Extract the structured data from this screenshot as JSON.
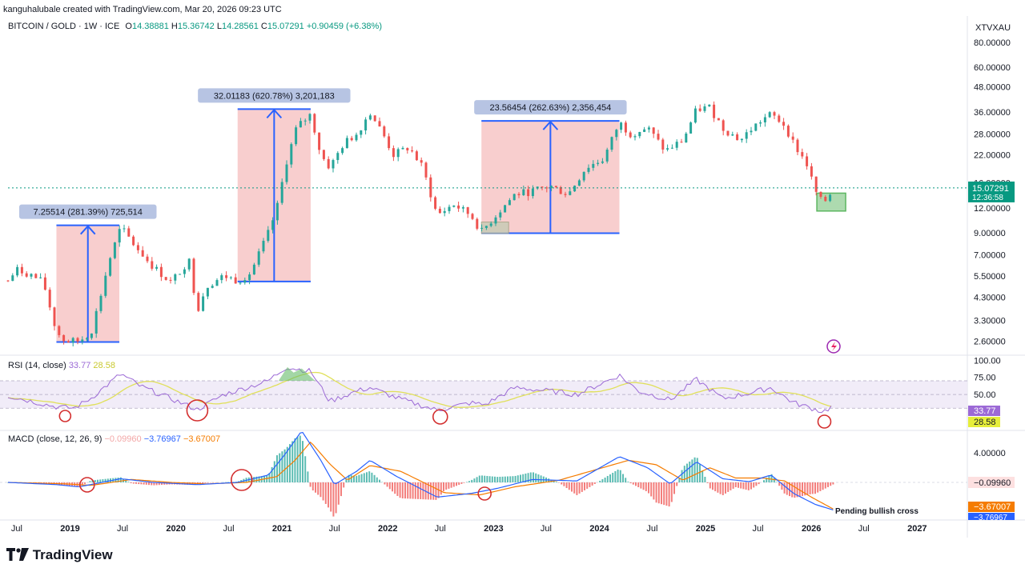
{
  "header": {
    "credit": "kanguhalubale created with TradingView.com, Mar 20, 2026 09:23 UTC",
    "symbol": "BITCOIN / GOLD · 1W · ICE",
    "ohlc": {
      "o_label": "O",
      "o": "14.38881",
      "h_label": "H",
      "h": "15.36742",
      "l_label": "L",
      "l": "14.28561",
      "c_label": "C",
      "c": "15.07291",
      "change": "+0.90459 (+6.38%)"
    },
    "ticker": "XTVXAU"
  },
  "colors": {
    "up": "#26a69a",
    "down": "#ef5350",
    "measure_fill": "#f7c6c6",
    "measure_line": "#2962ff",
    "rsi": "#9c6ad6",
    "rsi_ma": "#e8e85a",
    "macd": "#2962ff",
    "signal": "#f57c00",
    "circle": "#d32f2f",
    "price_label": "#089981",
    "green_box": "#4caf50"
  },
  "price_axis": {
    "ticks": [
      "80.00000",
      "60.00000",
      "48.00000",
      "36.00000",
      "28.00000",
      "22.00000",
      "16.00000",
      "12.00000",
      "9.00000",
      "7.00000",
      "5.50000",
      "4.30000",
      "3.30000",
      "2.60000"
    ],
    "current_price": "15.07291",
    "countdown": "12:36:58"
  },
  "time_axis": {
    "labels": [
      "Jul",
      "2019",
      "Jul",
      "2020",
      "Jul",
      "2021",
      "Jul",
      "2022",
      "Jul",
      "2023",
      "Jul",
      "2024",
      "Jul",
      "2025",
      "Jul",
      "2026",
      "Jul",
      "2027"
    ]
  },
  "measurements": [
    {
      "label": "7.25514 (281.39%) 725,514",
      "from_date": "2018-11-15",
      "to_date": "2019-06-20",
      "low": 2.58,
      "high": 9.82
    },
    {
      "label": "32.01183 (620.78%) 3,201,183",
      "from_date": "2020-08-01",
      "to_date": "2021-04-10",
      "low": 5.16,
      "high": 37.2
    },
    {
      "label": "23.56454 (262.63%) 2,356,454",
      "from_date": "2022-11-20",
      "to_date": "2024-03-10",
      "low": 8.97,
      "high": 32.5
    }
  ],
  "rsi_panel": {
    "label": "RSI (14, close)",
    "value": "33.77",
    "ma_value": "28.58",
    "levels": [
      "100.00",
      "75.00",
      "50.00"
    ]
  },
  "macd_panel": {
    "label": "MACD (close, 12, 26, 9)",
    "hist": "−0.09960",
    "macd": "−3.76967",
    "signal": "−3.67007",
    "axis_tick": "4.00000",
    "annotation": "Pending bullish cross"
  },
  "chart_data": {
    "type": "candlestick",
    "title": "BITCOIN / GOLD · 1W · ICE",
    "y_scale": "log",
    "ylim": [
      2.3,
      90
    ],
    "price_path": [
      [
        "2018-06-01",
        5.2
      ],
      [
        "2018-07-01",
        5.9
      ],
      [
        "2018-08-15",
        5.6
      ],
      [
        "2018-10-01",
        5.1
      ],
      [
        "2018-11-15",
        2.9
      ],
      [
        "2018-12-15",
        2.6
      ],
      [
        "2019-02-01",
        2.6
      ],
      [
        "2019-03-15",
        2.9
      ],
      [
        "2019-04-15",
        4.3
      ],
      [
        "2019-05-15",
        6.5
      ],
      [
        "2019-06-25",
        9.6
      ],
      [
        "2019-08-15",
        7.7
      ],
      [
        "2019-10-15",
        6.1
      ],
      [
        "2019-12-15",
        5.1
      ],
      [
        "2020-02-15",
        6.6
      ],
      [
        "2020-03-15",
        3.7
      ],
      [
        "2020-04-15",
        4.9
      ],
      [
        "2020-06-15",
        5.5
      ],
      [
        "2020-08-01",
        5.2
      ],
      [
        "2020-09-15",
        5.7
      ],
      [
        "2020-11-15",
        9.0
      ],
      [
        "2020-12-15",
        12.0
      ],
      [
        "2021-01-15",
        20.0
      ],
      [
        "2021-02-20",
        30.0
      ],
      [
        "2021-04-10",
        35.0
      ],
      [
        "2021-05-15",
        22.0
      ],
      [
        "2021-06-15",
        19.0
      ],
      [
        "2021-08-01",
        25.0
      ],
      [
        "2021-09-15",
        28.0
      ],
      [
        "2021-11-01",
        36.0
      ],
      [
        "2021-12-15",
        28.0
      ],
      [
        "2022-01-20",
        22.0
      ],
      [
        "2022-03-15",
        24.0
      ],
      [
        "2022-05-01",
        19.0
      ],
      [
        "2022-06-20",
        11.0
      ],
      [
        "2022-08-15",
        12.5
      ],
      [
        "2022-10-15",
        11.0
      ],
      [
        "2022-11-20",
        9.1
      ],
      [
        "2023-01-15",
        11.3
      ],
      [
        "2023-03-15",
        14.0
      ],
      [
        "2023-05-15",
        14.5
      ],
      [
        "2023-07-15",
        15.4
      ],
      [
        "2023-09-15",
        14.0
      ],
      [
        "2023-11-15",
        19.0
      ],
      [
        "2024-01-15",
        21.0
      ],
      [
        "2024-03-10",
        32.0
      ],
      [
        "2024-04-15",
        28.0
      ],
      [
        "2024-06-15",
        30.0
      ],
      [
        "2024-08-15",
        23.0
      ],
      [
        "2024-10-15",
        26.0
      ],
      [
        "2024-12-01",
        37.0
      ],
      [
        "2025-01-15",
        38.0
      ],
      [
        "2025-03-01",
        30.0
      ],
      [
        "2025-05-01",
        26.0
      ],
      [
        "2025-06-01",
        29.0
      ],
      [
        "2025-07-15",
        33.0
      ],
      [
        "2025-08-15",
        35.0
      ],
      [
        "2025-10-01",
        31.0
      ],
      [
        "2025-11-01",
        25.0
      ],
      [
        "2025-12-15",
        20.0
      ],
      [
        "2026-01-15",
        14.5
      ],
      [
        "2026-02-10",
        12.5
      ],
      [
        "2026-03-20",
        15.07
      ]
    ],
    "rsi_path": [
      [
        "2018-06-01",
        48
      ],
      [
        "2018-11-15",
        32
      ],
      [
        "2019-01-15",
        30
      ],
      [
        "2019-03-15",
        45
      ],
      [
        "2019-06-25",
        80
      ],
      [
        "2019-09-01",
        62
      ],
      [
        "2019-12-15",
        44
      ],
      [
        "2020-03-15",
        28
      ],
      [
        "2020-06-15",
        50
      ],
      [
        "2020-11-15",
        70
      ],
      [
        "2021-01-15",
        90
      ],
      [
        "2021-04-10",
        84
      ],
      [
        "2021-06-15",
        40
      ],
      [
        "2021-09-15",
        55
      ],
      [
        "2021-11-01",
        60
      ],
      [
        "2022-02-01",
        45
      ],
      [
        "2022-06-20",
        27
      ],
      [
        "2022-10-15",
        38
      ],
      [
        "2022-12-01",
        35
      ],
      [
        "2023-03-15",
        60
      ],
      [
        "2023-07-15",
        55
      ],
      [
        "2023-10-15",
        50
      ],
      [
        "2024-03-10",
        78
      ],
      [
        "2024-05-15",
        55
      ],
      [
        "2024-09-01",
        42
      ],
      [
        "2024-12-01",
        72
      ],
      [
        "2025-03-01",
        44
      ],
      [
        "2025-06-01",
        52
      ],
      [
        "2025-08-15",
        60
      ],
      [
        "2025-11-01",
        38
      ],
      [
        "2026-02-10",
        25
      ],
      [
        "2026-03-20",
        33.77
      ]
    ],
    "macd_path": [
      [
        "2018-06-01",
        0.0
      ],
      [
        "2018-11-15",
        -0.3
      ],
      [
        "2019-02-01",
        -0.6
      ],
      [
        "2019-06-25",
        0.5
      ],
      [
        "2019-10-15",
        0.0
      ],
      [
        "2020-03-15",
        -0.3
      ],
      [
        "2020-08-01",
        0.0
      ],
      [
        "2020-11-15",
        1.0
      ],
      [
        "2021-01-15",
        4.0
      ],
      [
        "2021-03-10",
        7.0
      ],
      [
        "2021-05-15",
        3.0
      ],
      [
        "2021-07-01",
        -0.3
      ],
      [
        "2021-09-15",
        1.5
      ],
      [
        "2021-11-01",
        3.0
      ],
      [
        "2022-02-01",
        0.8
      ],
      [
        "2022-06-20",
        -2.0
      ],
      [
        "2022-10-15",
        -1.5
      ],
      [
        "2023-01-15",
        -0.8
      ],
      [
        "2023-05-15",
        0.4
      ],
      [
        "2023-10-15",
        0.2
      ],
      [
        "2024-03-10",
        3.5
      ],
      [
        "2024-06-15",
        2.0
      ],
      [
        "2024-09-01",
        -0.2
      ],
      [
        "2024-12-01",
        2.8
      ],
      [
        "2025-03-01",
        0.5
      ],
      [
        "2025-06-01",
        0.1
      ],
      [
        "2025-08-15",
        1.0
      ],
      [
        "2025-11-01",
        -1.5
      ],
      [
        "2026-01-15",
        -3.0
      ],
      [
        "2026-03-20",
        -3.77
      ]
    ],
    "signal_path": [
      [
        "2018-06-01",
        0.0
      ],
      [
        "2018-12-15",
        -0.2
      ],
      [
        "2019-03-15",
        -0.4
      ],
      [
        "2019-08-01",
        0.4
      ],
      [
        "2019-12-15",
        0.0
      ],
      [
        "2020-04-15",
        -0.2
      ],
      [
        "2020-09-01",
        0.0
      ],
      [
        "2020-12-15",
        0.8
      ],
      [
        "2021-02-15",
        3.0
      ],
      [
        "2021-04-10",
        5.5
      ],
      [
        "2021-06-15",
        2.5
      ],
      [
        "2021-08-15",
        0.3
      ],
      [
        "2021-11-01",
        2.3
      ],
      [
        "2022-02-15",
        1.5
      ],
      [
        "2022-07-15",
        -1.4
      ],
      [
        "2022-11-15",
        -1.7
      ],
      [
        "2023-03-15",
        -0.6
      ],
      [
        "2023-08-15",
        0.3
      ],
      [
        "2024-04-10",
        3.0
      ],
      [
        "2024-07-15",
        2.4
      ],
      [
        "2024-10-15",
        0.3
      ],
      [
        "2025-01-15",
        2.0
      ],
      [
        "2025-04-15",
        0.6
      ],
      [
        "2025-07-15",
        0.6
      ],
      [
        "2025-10-01",
        0.2
      ],
      [
        "2026-01-01",
        -2.0
      ],
      [
        "2026-03-20",
        -3.67
      ]
    ]
  }
}
